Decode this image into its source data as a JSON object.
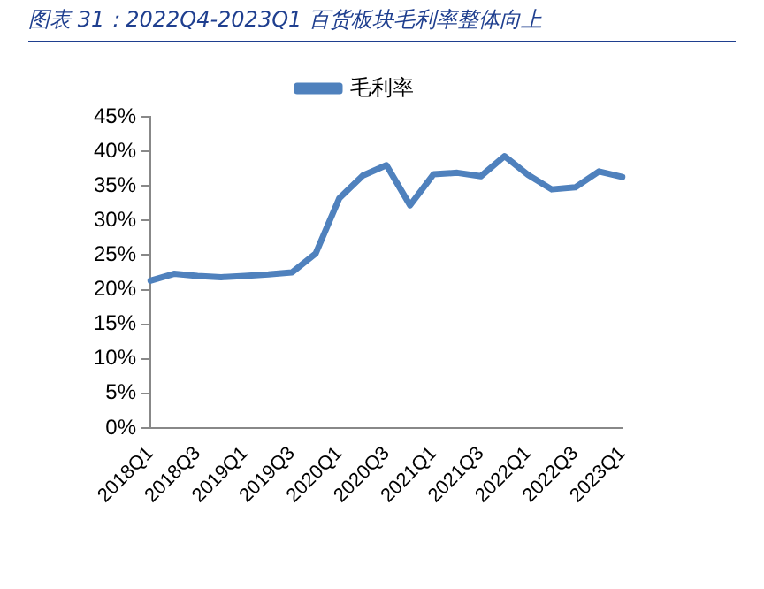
{
  "chart_data": {
    "type": "line",
    "title": "图表 31：2022Q4-2023Q1 百货板块毛利率整体向上",
    "categories": [
      "2018Q1",
      null,
      "2018Q3",
      null,
      "2019Q1",
      null,
      "2019Q3",
      null,
      "2020Q1",
      null,
      "2020Q3",
      null,
      "2021Q1",
      null,
      "2021Q3",
      null,
      "2022Q1",
      null,
      "2022Q3",
      null,
      "2023Q1"
    ],
    "series": [
      {
        "name": "毛利率",
        "color": "#4f81bd",
        "values": [
          21.3,
          22.3,
          22.0,
          21.8,
          22.0,
          22.2,
          22.5,
          25.2,
          33.2,
          36.5,
          38.0,
          32.2,
          36.7,
          36.9,
          36.4,
          39.3,
          36.6,
          34.5,
          34.8,
          37.1,
          36.3
        ]
      }
    ],
    "ylim": [
      0,
      45
    ],
    "yticks": [
      {
        "value": 0,
        "label": "0%"
      },
      {
        "value": 5,
        "label": "5%"
      },
      {
        "value": 10,
        "label": "10%"
      },
      {
        "value": 15,
        "label": "15%"
      },
      {
        "value": 20,
        "label": "20%"
      },
      {
        "value": 25,
        "label": "25%"
      },
      {
        "value": 30,
        "label": "30%"
      },
      {
        "value": 35,
        "label": "35%"
      },
      {
        "value": 40,
        "label": "40%"
      },
      {
        "value": 45,
        "label": "45%"
      }
    ],
    "grid": false,
    "legend": "top",
    "marker": "none",
    "line_style": "solid"
  }
}
